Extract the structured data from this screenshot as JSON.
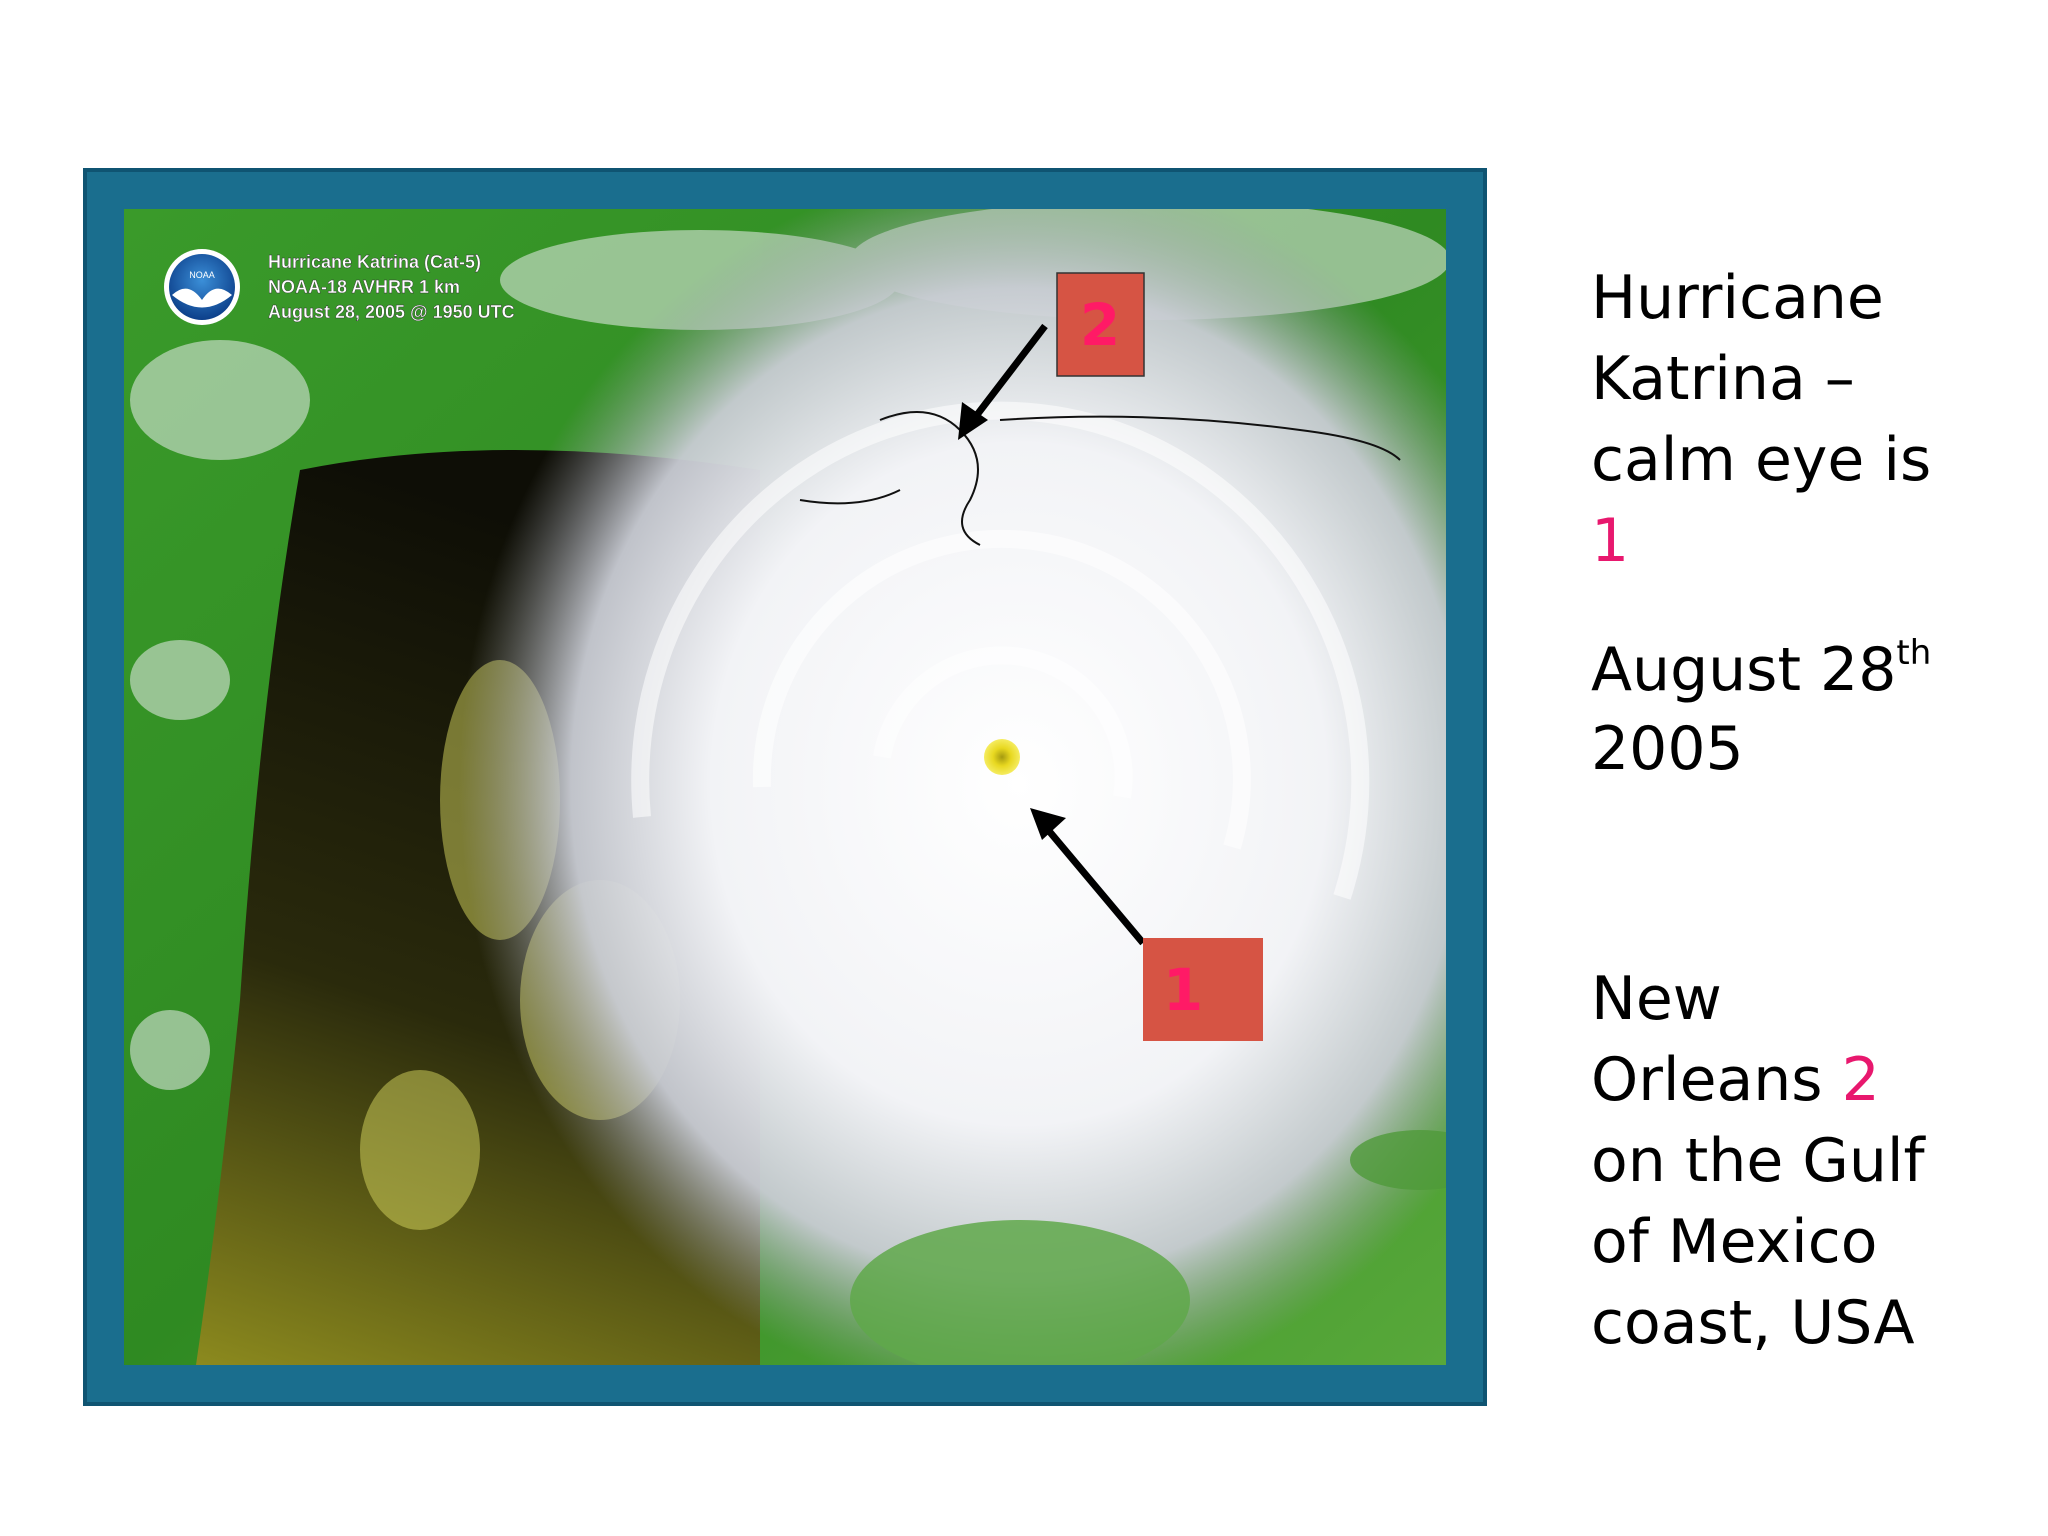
{
  "satellite_image": {
    "logo": "NOAA",
    "caption": [
      "Hurricane Katrina (Cat-5)",
      "NOAA-18 AVHRR 1 km",
      "August 28, 2005 @ 1950 UTC"
    ],
    "marker_2": "2",
    "marker_1": "1"
  },
  "text": {
    "paragraph_1": {
      "lines": [
        "Hurricane",
        "Katrina –",
        "calm eye is"
      ],
      "highlight": "1"
    },
    "paragraph_2": {
      "date": "August 28",
      "superscript": "th",
      "year": "2005"
    },
    "paragraph_3": {
      "first": "New",
      "second": "Orleans",
      "highlight": "2",
      "lines": [
        "on the Gulf",
        "of Mexico",
        "coast, USA"
      ]
    }
  }
}
